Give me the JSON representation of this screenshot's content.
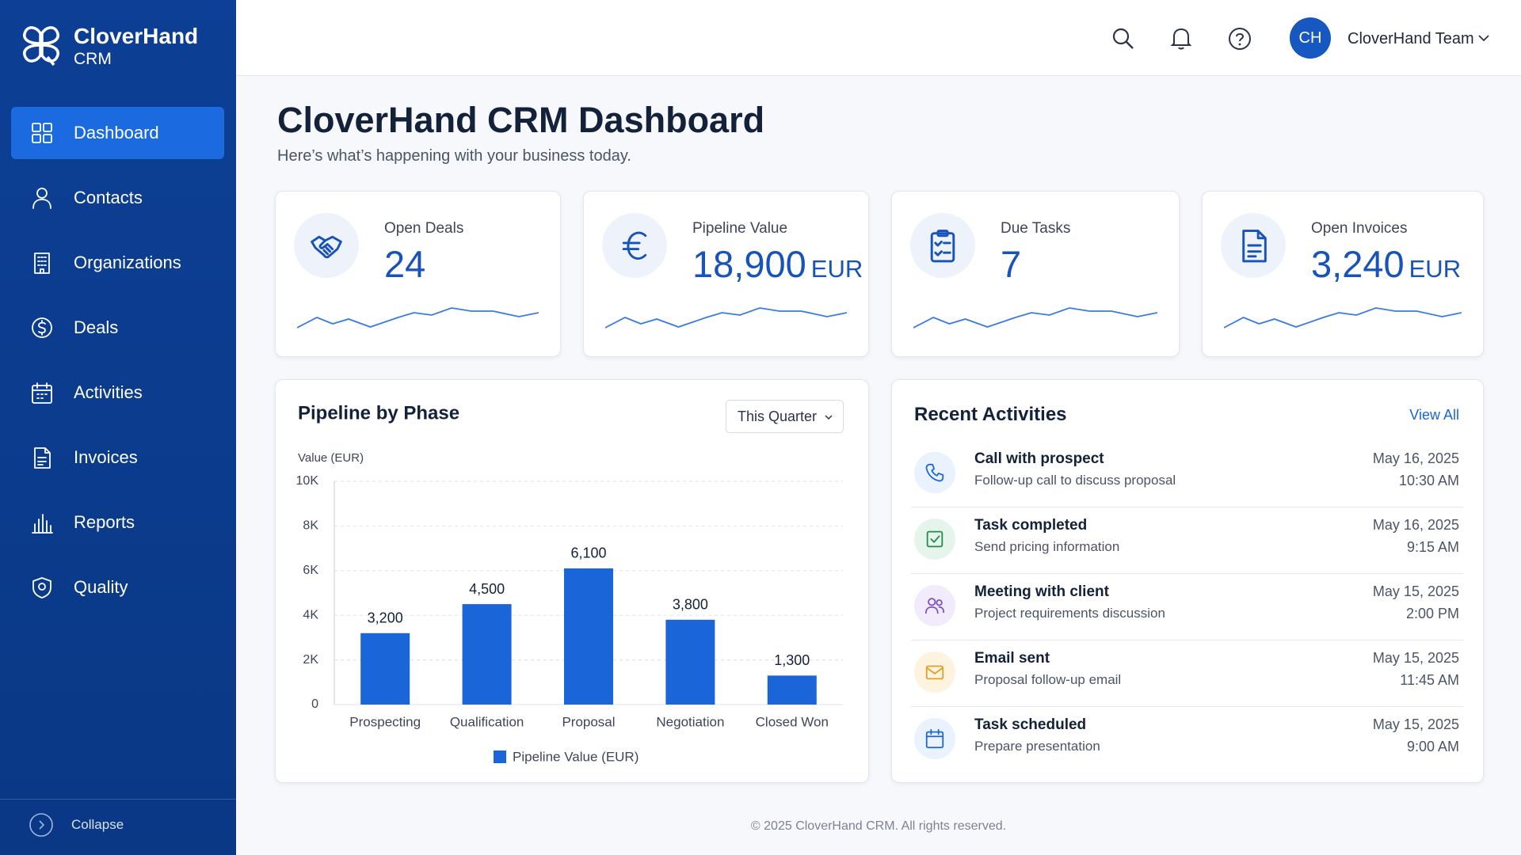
{
  "sidebar": {
    "brand": "CloverHand",
    "brand_sub": "CRM",
    "nav": [
      "Dashboard",
      "Contacts",
      "Organizations",
      "Deals",
      "Activities",
      "Invoices",
      "Reports",
      "Quality"
    ],
    "collapse": "Collapse"
  },
  "header": {
    "avatar": "CH",
    "user": "CloverHand Team"
  },
  "page": {
    "title": "CloverHand CRM Dashboard",
    "subtitle": "Here’s what’s happening with your business today."
  },
  "kpis": [
    {
      "label": "Open Deals",
      "value": "24"
    },
    {
      "label": "Pipeline Value",
      "value": "18,900",
      "unit": "EUR"
    },
    {
      "label": "Due Tasks",
      "value": "7"
    },
    {
      "label": "Open Invoices",
      "value": "3,240",
      "unit": "EUR"
    }
  ],
  "chart_data": {
    "type": "bar",
    "title": "Pipeline by Phase",
    "filter": "This Quarter",
    "y_label": "Value (EUR)",
    "categories": [
      "Prospecting",
      "Qualification",
      "Proposal",
      "Negotiation",
      "Closed Won"
    ],
    "series": [
      {
        "name": "Pipeline Value (EUR)",
        "color": "#1a66d9",
        "values": [
          3200,
          4500,
          6100,
          3800,
          1300
        ],
        "value_labels": [
          "3,200",
          "4,500",
          "6,100",
          "3,800",
          "1,300"
        ]
      }
    ],
    "ylim": [
      0,
      10000
    ],
    "yticks": [
      0,
      {
        "value": 2000,
        "label": "2K"
      },
      {
        "value": 4000,
        "label": "4K"
      },
      {
        "value": 6000,
        "label": "6K"
      },
      {
        "value": 8000,
        "label": "8K"
      },
      {
        "value": 10000,
        "label": "10K"
      }
    ],
    "grid": true
  },
  "activities": {
    "title": "Recent Activities",
    "view_all": "View All",
    "items": [
      {
        "title": "Call with prospect",
        "detail": "Follow-up call to discuss proposal",
        "date": "May 16, 2025",
        "time": "10:30 AM"
      },
      {
        "title": "Task completed",
        "detail": "Send pricing information",
        "date": "May 16, 2025",
        "time": "9:15 AM"
      },
      {
        "title": "Meeting with client",
        "detail": "Project requirements discussion",
        "date": "May 15, 2025",
        "time": "2:00 PM"
      },
      {
        "title": "Email sent",
        "detail": "Proposal follow-up email",
        "date": "May 15, 2025",
        "time": "11:45 AM"
      },
      {
        "title": "Task scheduled",
        "detail": "Prepare presentation",
        "date": "May 15, 2025",
        "time": "9:00 AM"
      }
    ]
  },
  "footer": "© 2025 CloverHand CRM. All rights reserved."
}
